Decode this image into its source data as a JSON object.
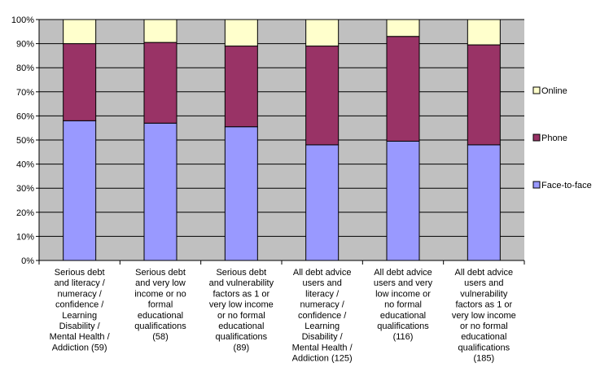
{
  "chart_data": {
    "type": "bar",
    "stacked": true,
    "percent_stacked": true,
    "title": "",
    "xlabel": "",
    "ylabel": "",
    "ylim": [
      0,
      100
    ],
    "y_ticks": [
      "0%",
      "10%",
      "20%",
      "30%",
      "40%",
      "50%",
      "60%",
      "70%",
      "80%",
      "90%",
      "100%"
    ],
    "grid": true,
    "plot_background": "#c0c0c0",
    "legend_position": "right",
    "categories": [
      "Serious debt and literacy / numeracy / confidence / Learning Disability / Mental Health / Addiction  (59)",
      "Serious debt and very low income or no formal educational qualifications (58)",
      "Serious debt and vulnerability factors as 1 or very low income or no formal educational qualifications (89)",
      "All debt advice users and literacy / numeracy / confidence / Learning Disability / Mental Health / Addiction (125)",
      "All debt advice users and very low income or no formal educational qualifications (116)",
      "All debt advice users  and vulnerability factors as 1 or very low income or no formal educational qualifications (185)"
    ],
    "category_lines": [
      [
        "Serious debt",
        "and literacy /",
        "numeracy /",
        "confidence /",
        "Learning",
        "Disability /",
        "Mental Health /",
        "Addiction  (59)"
      ],
      [
        "Serious debt",
        "and very low",
        "income or no",
        "formal",
        "educational",
        "qualifications",
        "(58)"
      ],
      [
        "Serious debt",
        "and vulnerability",
        "factors as 1 or",
        "very low income",
        "or no formal",
        "educational",
        "qualifications",
        "(89)"
      ],
      [
        "All debt advice",
        "users and",
        "literacy /",
        "numeracy /",
        "confidence /",
        "Learning",
        "Disability /",
        "Mental Health /",
        "Addiction (125)"
      ],
      [
        "All debt advice",
        "users and very",
        "low income or",
        "no formal",
        "educational",
        "qualifications",
        "(116)"
      ],
      [
        "All debt advice",
        "users  and",
        "vulnerability",
        "factors as 1 or",
        "very low income",
        "or no formal",
        "educational",
        "qualifications",
        "(185)"
      ]
    ],
    "series": [
      {
        "name": "Face-to-face",
        "color": "#9999ff",
        "values": [
          58,
          57,
          55.5,
          48,
          49.5,
          48
        ]
      },
      {
        "name": "Phone",
        "color": "#993366",
        "values": [
          32,
          33.5,
          33.5,
          41,
          43.5,
          41.5
        ]
      },
      {
        "name": "Online",
        "color": "#ffffcc",
        "values": [
          10,
          9.5,
          11,
          11,
          7,
          10.5
        ]
      }
    ],
    "legend_order": [
      "Online",
      "Phone",
      "Face-to-face"
    ]
  }
}
